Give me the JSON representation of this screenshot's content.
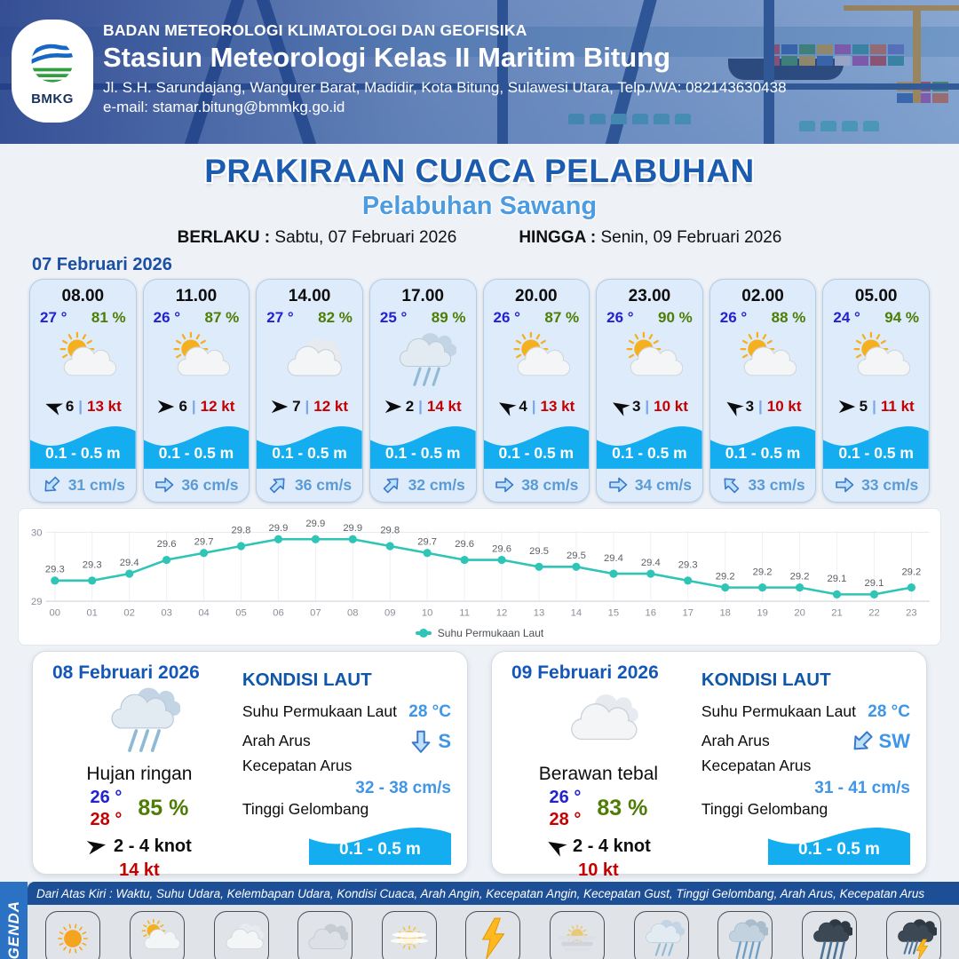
{
  "header": {
    "agency": "BADAN METEOROLOGI KLIMATOLOGI DAN GEOFISIKA",
    "station": "Stasiun Meteorologi Kelas II Maritim Bitung",
    "address": "Jl. S.H. Sarundajang, Wangurer Barat, Madidir, Kota Bitung, Sulawesi Utara, Telp./WA: 082143630438",
    "email": "e-mail: stamar.bitung@bmmkg.go.id",
    "logo_text": "BMKG"
  },
  "title": {
    "main": "PRAKIRAAN CUACA PELABUHAN",
    "subtitle": "Pelabuhan Sawang",
    "berlaku_label": "BERLAKU :",
    "berlaku_value": "Sabtu, 07 Februari 2026",
    "hingga_label": "HINGGA :",
    "hingga_value": "Senin, 09 Februari 2026"
  },
  "forecast_date": "07 Februari 2026",
  "ui": {
    "separator": "|"
  },
  "colors": {
    "accent_blue": "#1c5cb0",
    "light_blue": "#4d9be0",
    "wave_blue": "#14adf0",
    "temp_blue": "#2222cf",
    "humidity_green": "#4e7d05",
    "gust_red": "#c40000",
    "chart_teal": "#2ec4b6"
  },
  "forecast_cards": [
    {
      "time": "08.00",
      "temp": "27 °",
      "humidity": "81 %",
      "icon": "cerah-berawan",
      "wind_deg": 200,
      "wind_speed": "6",
      "gust": "13 kt",
      "wave": "0.1 - 0.5 m",
      "current_dir": "sw",
      "current_speed": "31 cm/s"
    },
    {
      "time": "11.00",
      "temp": "26 °",
      "humidity": "87 %",
      "icon": "cerah-berawan",
      "wind_deg": 0,
      "wind_speed": "6",
      "gust": "12 kt",
      "wave": "0.1 - 0.5 m",
      "current_dir": "e",
      "current_speed": "36 cm/s"
    },
    {
      "time": "14.00",
      "temp": "27 °",
      "humidity": "82 %",
      "icon": "berawan",
      "wind_deg": 0,
      "wind_speed": "7",
      "gust": "12 kt",
      "wave": "0.1 - 0.5 m",
      "current_dir": "ne",
      "current_speed": "36 cm/s"
    },
    {
      "time": "17.00",
      "temp": "25 °",
      "humidity": "89 %",
      "icon": "hujan-ringan",
      "wind_deg": 0,
      "wind_speed": "2",
      "gust": "14 kt",
      "wave": "0.1 - 0.5 m",
      "current_dir": "ne",
      "current_speed": "32 cm/s"
    },
    {
      "time": "20.00",
      "temp": "26 °",
      "humidity": "87 %",
      "icon": "cerah-berawan",
      "wind_deg": 210,
      "wind_speed": "4",
      "gust": "13 kt",
      "wave": "0.1 - 0.5 m",
      "current_dir": "e",
      "current_speed": "38 cm/s"
    },
    {
      "time": "23.00",
      "temp": "26 °",
      "humidity": "90 %",
      "icon": "cerah-berawan",
      "wind_deg": 210,
      "wind_speed": "3",
      "gust": "10 kt",
      "wave": "0.1 - 0.5 m",
      "current_dir": "e",
      "current_speed": "34 cm/s"
    },
    {
      "time": "02.00",
      "temp": "26 °",
      "humidity": "88 %",
      "icon": "cerah-berawan",
      "wind_deg": 215,
      "wind_speed": "3",
      "gust": "10 kt",
      "wave": "0.1 - 0.5 m",
      "current_dir": "nw",
      "current_speed": "33 cm/s"
    },
    {
      "time": "05.00",
      "temp": "24 °",
      "humidity": "94 %",
      "icon": "cerah-berawan",
      "wind_deg": 0,
      "wind_speed": "5",
      "gust": "11 kt",
      "wave": "0.1 - 0.5 m",
      "current_dir": "e",
      "current_speed": "33 cm/s"
    }
  ],
  "chart_data": {
    "type": "line",
    "x": [
      "00",
      "01",
      "02",
      "03",
      "04",
      "05",
      "06",
      "07",
      "08",
      "09",
      "10",
      "11",
      "12",
      "13",
      "14",
      "15",
      "16",
      "17",
      "18",
      "19",
      "20",
      "21",
      "22",
      "23"
    ],
    "series": [
      {
        "name": "Suhu Permukaan Laut",
        "values": [
          29.3,
          29.3,
          29.4,
          29.6,
          29.7,
          29.8,
          29.9,
          29.9,
          29.9,
          29.8,
          29.7,
          29.6,
          29.6,
          29.5,
          29.5,
          29.4,
          29.4,
          29.3,
          29.2,
          29.2,
          29.2,
          29.1,
          29.1,
          29.2
        ]
      }
    ],
    "ylim": [
      29,
      30
    ],
    "yticks": [
      29,
      30
    ],
    "line_color": "#2ec4b6",
    "legend_position": "bottom",
    "grid": true
  },
  "day_cards": [
    {
      "date": "08 Februari 2026",
      "icon": "hujan-ringan",
      "condition": "Hujan ringan",
      "temp_min": "26 °",
      "temp_max": "28 °",
      "humidity": "85 %",
      "wind_deg": 350,
      "wind": "2 - 4 knot",
      "gust": "14 kt",
      "sea": {
        "heading": "KONDISI LAUT",
        "sst_label": "Suhu Permukaan Laut",
        "sst": "28 °C",
        "arah_label": "Arah Arus",
        "arah": "S",
        "kecepatan_label": "Kecepatan Arus",
        "kecepatan": "32 - 38 cm/s",
        "tinggi_label": "Tinggi Gelombang",
        "tinggi": "0.1 - 0.5 m"
      }
    },
    {
      "date": "09 Februari 2026",
      "icon": "berawan",
      "condition": "Berawan tebal",
      "temp_min": "26 °",
      "temp_max": "28 °",
      "humidity": "83 %",
      "wind_deg": 210,
      "wind": "2 - 4 knot",
      "gust": "10 kt",
      "sea": {
        "heading": "KONDISI LAUT",
        "sst_label": "Suhu Permukaan Laut",
        "sst": "28 °C",
        "arah_label": "Arah Arus",
        "arah": "SW",
        "kecepatan_label": "Kecepatan Arus",
        "kecepatan": "31 - 41 cm/s",
        "tinggi_label": "Tinggi Gelombang",
        "tinggi": "0.1 - 0.5 m"
      }
    }
  ],
  "legend": {
    "band_label": "LEGENDA",
    "description": "Dari Atas Kiri : Waktu, Suhu Udara, Kelembapan Udara, Kondisi Cuaca, Arah Angin, Kecepatan Angin, Kecepatan Gust, Tinggi Gelombang, Arah Arus, Kecepatan Arus",
    "items": [
      {
        "label": "Cerah",
        "icon": "cerah"
      },
      {
        "label": "Cerah Berawan",
        "icon": "cerah-berawan"
      },
      {
        "label": "Berawan",
        "icon": "berawan"
      },
      {
        "label": "Berawan Tebal",
        "icon": "berawan-tebal"
      },
      {
        "label": "Udara Kabur",
        "icon": "udara-kabur"
      },
      {
        "label": "Petir",
        "icon": "petir"
      },
      {
        "label": "Kabut",
        "icon": "kabut"
      },
      {
        "label": "Hujan Ringan",
        "icon": "hujan-ringan"
      },
      {
        "label": "Hujan Sedang",
        "icon": "hujan-sedang"
      },
      {
        "label": "Hujan Lebat",
        "icon": "hujan-lebat"
      },
      {
        "label": "Hujan Petir",
        "icon": "hujan-petir"
      }
    ]
  }
}
